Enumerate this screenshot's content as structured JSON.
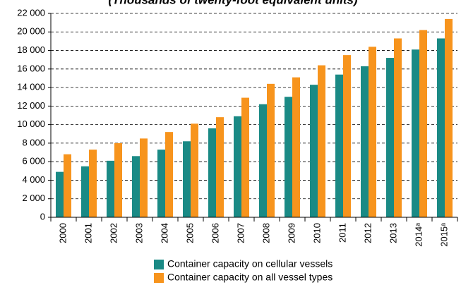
{
  "chart_data": {
    "type": "bar",
    "title": "(Thousands of twenty-foot equivalent units)",
    "categories": [
      "2000",
      "2001",
      "2002",
      "2003",
      "2004",
      "2005",
      "2006",
      "2007",
      "2008",
      "2009",
      "2010",
      "2011",
      "2012",
      "2013",
      "2014ᵃ",
      "2015ᵃ"
    ],
    "series": [
      {
        "name": "Container capacity on cellular vessels",
        "color": "#1a8a85",
        "values": [
          4900,
          5500,
          6100,
          6600,
          7300,
          8200,
          9600,
          10900,
          12200,
          13000,
          14300,
          15400,
          16300,
          17200,
          18100,
          19300
        ]
      },
      {
        "name": "Container capacity on all vessel types",
        "color": "#f7941d",
        "values": [
          6800,
          7300,
          8000,
          8500,
          9200,
          10100,
          10800,
          12900,
          14400,
          15100,
          16400,
          17500,
          18400,
          19300,
          20200,
          21400
        ]
      }
    ],
    "ylim": [
      0,
      22000
    ],
    "yticks": [
      0,
      {
        "value": 2000,
        "label": "2 000"
      },
      {
        "value": 4000,
        "label": "4 000"
      },
      {
        "value": 6000,
        "label": "6 000"
      },
      {
        "value": 8000,
        "label": "8 000"
      },
      {
        "value": 10000,
        "label": "10 000"
      },
      {
        "value": 12000,
        "label": "12 000"
      },
      {
        "value": 14000,
        "label": "14 000"
      },
      {
        "value": 16000,
        "label": "16 000"
      },
      {
        "value": 18000,
        "label": "18 000"
      },
      {
        "value": 20000,
        "label": "20 000"
      },
      {
        "value": 22000,
        "label": "22 000"
      }
    ],
    "grid": true
  }
}
